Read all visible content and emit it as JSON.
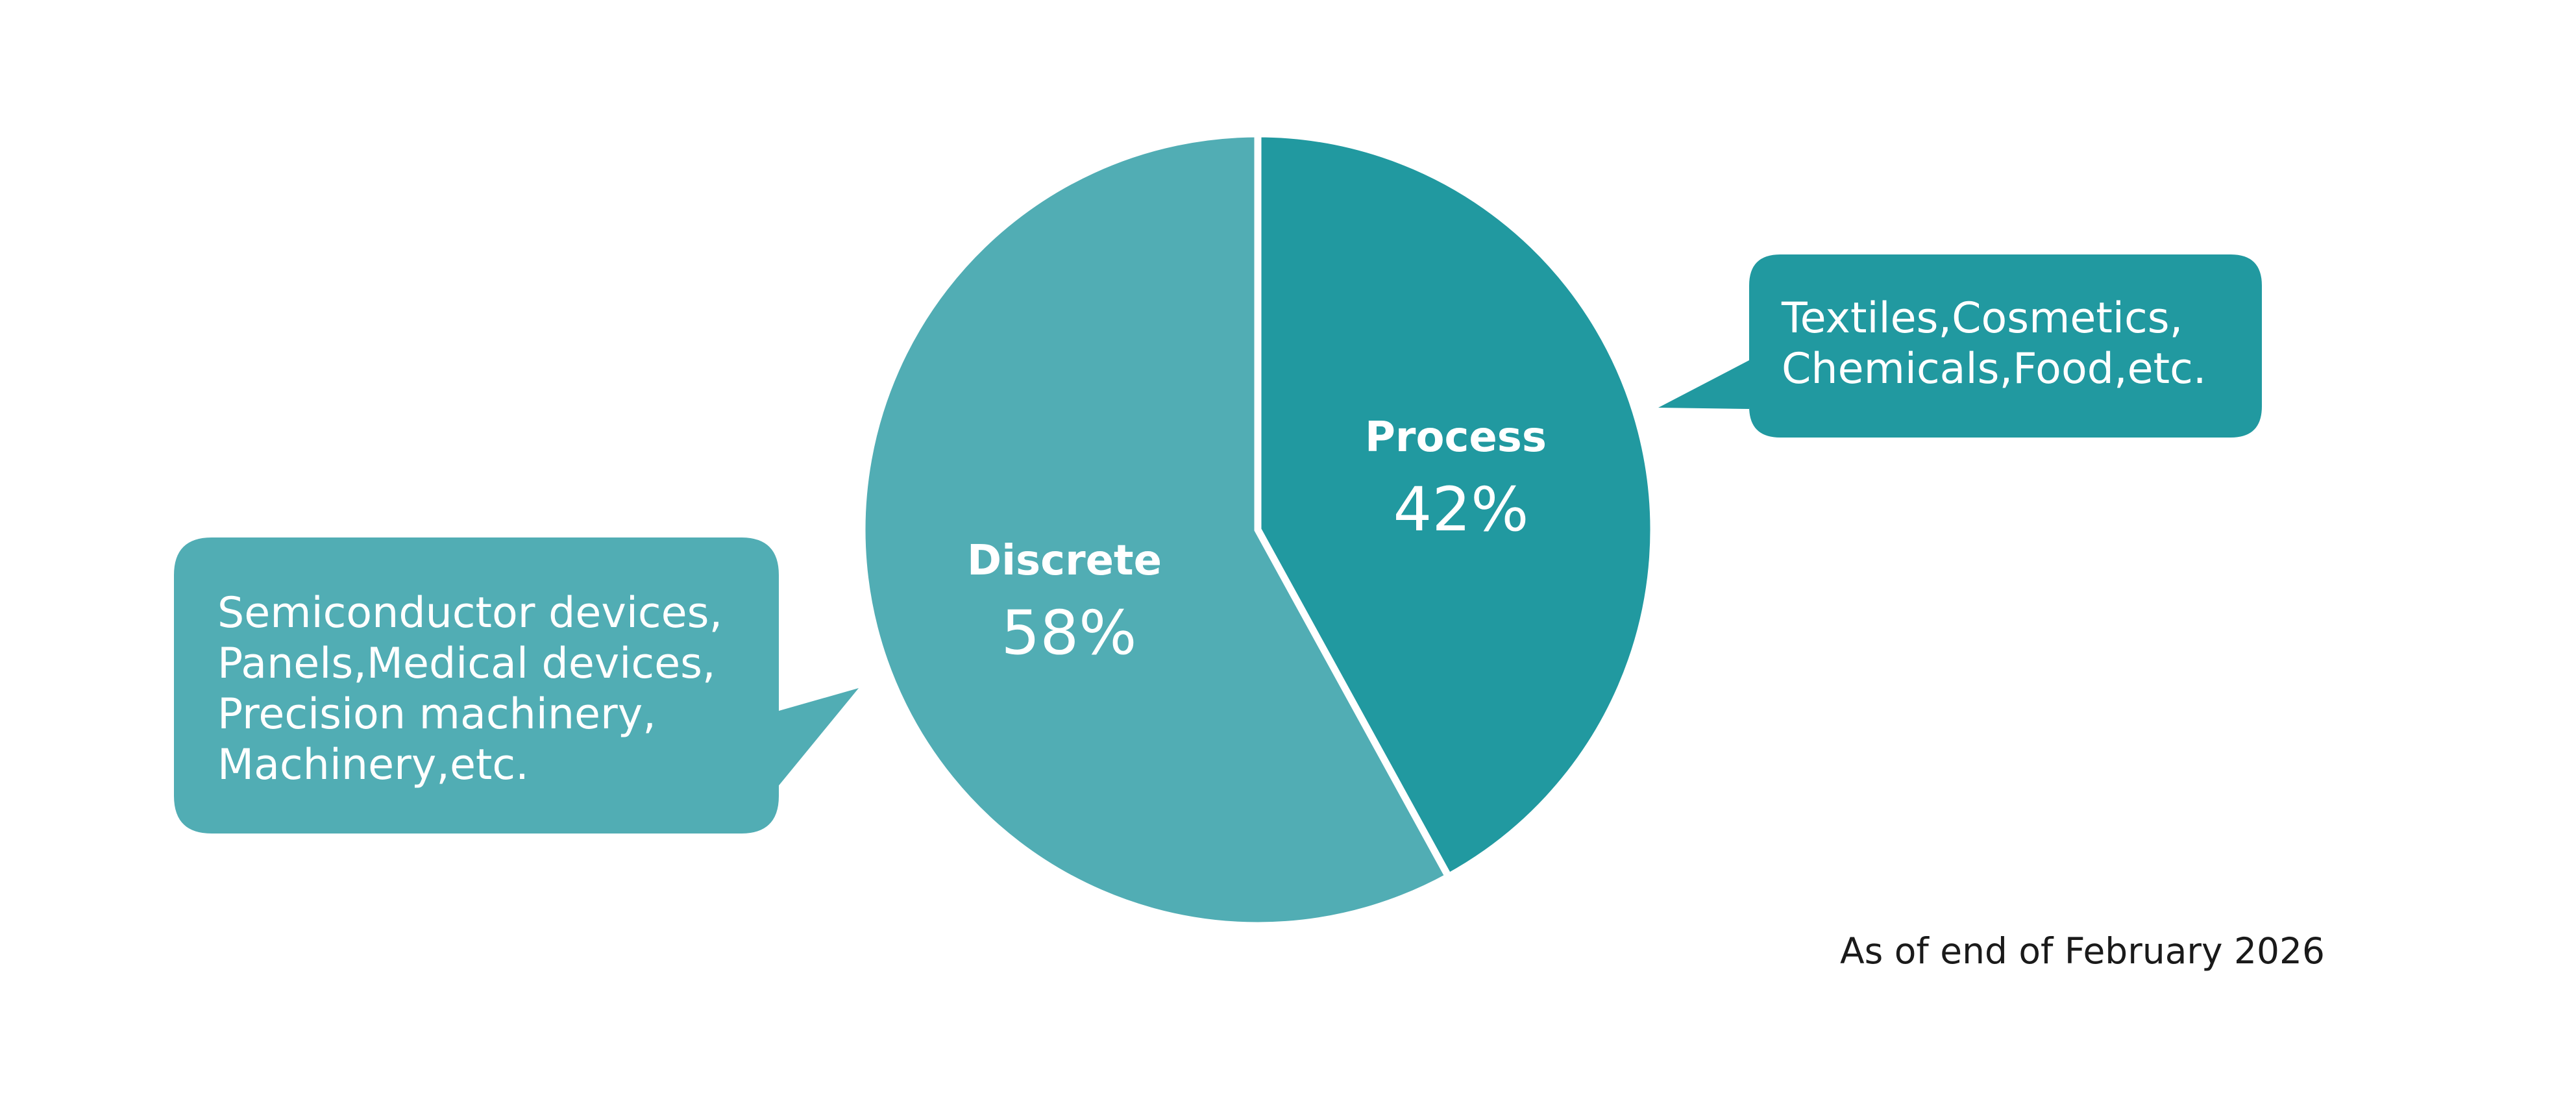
{
  "chart_data": {
    "type": "pie",
    "start": "12 o'clock",
    "direction": "clockwise",
    "slices": [
      {
        "name": "Process",
        "value": 42,
        "label": "42%",
        "color": "#2199a0",
        "callout": [
          "Textiles,Cosmetics,",
          "Chemicals,Food,etc."
        ]
      },
      {
        "name": "Discrete",
        "value": 58,
        "label": "58%",
        "color": "#51adb4",
        "callout": [
          "Semiconductor devices,",
          "Panels,Medical devices,",
          "Precision machinery,",
          "Machinery,etc."
        ]
      }
    ],
    "note": "As of end of February 2026"
  }
}
